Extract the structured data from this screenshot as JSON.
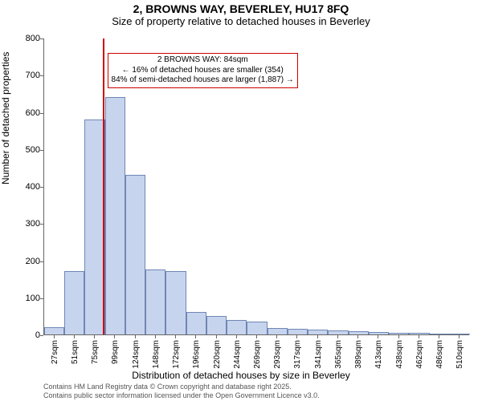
{
  "title_line1": "2, BROWNS WAY, BEVERLEY, HU17 8FQ",
  "title_line2": "Size of property relative to detached houses in Beverley",
  "ylabel": "Number of detached properties",
  "xlabel": "Distribution of detached houses by size in Beverley",
  "footer_line1": "Contains HM Land Registry data © Crown copyright and database right 2025.",
  "footer_line2": "Contains public sector information licensed under the Open Government Licence v3.0.",
  "chart": {
    "type": "histogram",
    "plot_bg": "#ffffff",
    "bar_fill": "#c7d4ed",
    "bar_border": "#6f87b5",
    "vline_color": "#cc0000",
    "vline_x_value": 84,
    "callout_border": "#cc0000",
    "callout_lines": [
      "2 BROWNS WAY: 84sqm",
      "← 16% of detached houses are smaller (354)",
      "84% of semi-detached houses are larger (1,887) →"
    ],
    "ylim": [
      0,
      800
    ],
    "ytick_step": 100,
    "x_bin_width": 24,
    "x_start": 15,
    "bars": [
      20,
      170,
      580,
      640,
      430,
      175,
      170,
      60,
      50,
      40,
      35,
      18,
      15,
      12,
      10,
      8,
      6,
      4,
      4,
      2,
      2
    ],
    "xtick_labels": [
      "27sqm",
      "51sqm",
      "75sqm",
      "99sqm",
      "124sqm",
      "148sqm",
      "172sqm",
      "196sqm",
      "220sqm",
      "244sqm",
      "269sqm",
      "293sqm",
      "317sqm",
      "341sqm",
      "365sqm",
      "389sqm",
      "413sqm",
      "438sqm",
      "462sqm",
      "486sqm",
      "510sqm"
    ],
    "label_fontsize": 11,
    "tick_fontsize": 10
  }
}
